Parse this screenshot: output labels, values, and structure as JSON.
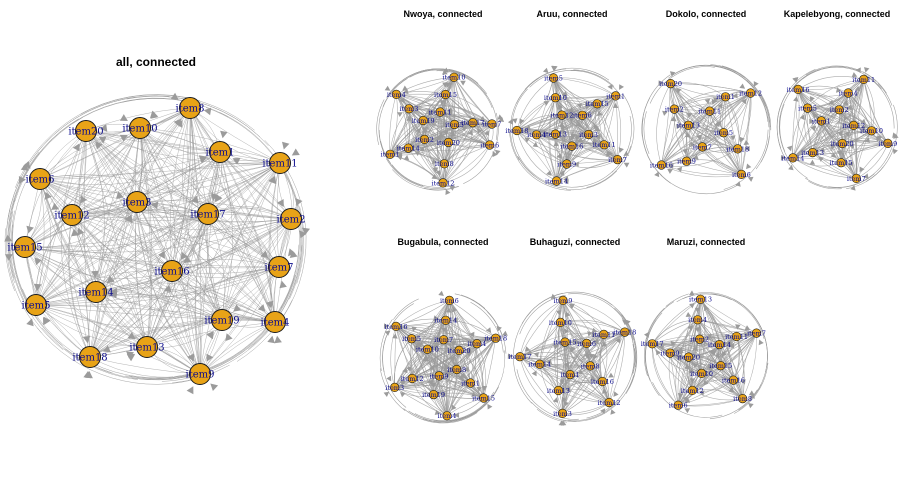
{
  "node_style": {
    "fill": "#E8A317",
    "stroke": "#1a1a1a",
    "edge": "#9b9b9b",
    "label": "#0a0a8c"
  },
  "panels": [
    {
      "id": "all",
      "title": "all, connected",
      "nodes": [
        "item8",
        "item20",
        "item10",
        "item1",
        "item11",
        "item6",
        "item3",
        "item12",
        "item17",
        "item2",
        "item15",
        "item7",
        "item16",
        "item14",
        "item5",
        "item19",
        "item4",
        "item13",
        "item18",
        "item9"
      ]
    },
    {
      "id": "nwoya",
      "title": "Nwoya, connected",
      "nodes": [
        "item6",
        "item8",
        "item2",
        "item12",
        "item14",
        "item19",
        "item1",
        "item3",
        "item11",
        "item4",
        "item15",
        "item5",
        "item10",
        "item17",
        "item20",
        "item7"
      ]
    },
    {
      "id": "aruu",
      "title": "Aruu, connected",
      "nodes": [
        "item7",
        "item9",
        "item13",
        "item14",
        "item4",
        "item12",
        "item18",
        "item10",
        "item6",
        "item5",
        "item15",
        "item3",
        "item1",
        "item11",
        "item16"
      ]
    },
    {
      "id": "dokolo",
      "title": "Dokolo, connected",
      "nodes": [
        "item6",
        "item9",
        "item13",
        "item16",
        "item2",
        "item11",
        "item20",
        "item1",
        "item5",
        "item12",
        "item18",
        "item7"
      ]
    },
    {
      "id": "kapelebyong",
      "title": "Kapelebyong, connected",
      "nodes": [
        "item7",
        "item13",
        "item1",
        "item14",
        "item5",
        "item2",
        "item16",
        "item4",
        "item12",
        "item11",
        "item10",
        "item20",
        "item9",
        "item15"
      ]
    },
    {
      "id": "bugabula",
      "title": "Bugabula, connected",
      "nodes": [
        "item4",
        "item12",
        "item10",
        "item3",
        "item5",
        "item7",
        "item16",
        "item14",
        "item20",
        "item6",
        "item4",
        "item8",
        "item18",
        "item1",
        "item9",
        "item15",
        "item19"
      ]
    },
    {
      "id": "buhaguzi",
      "title": "Buhaguzi, connected",
      "nodes": [
        "item3",
        "item14",
        "item15",
        "item17",
        "item10",
        "item6",
        "item9",
        "item11",
        "item8",
        "item18",
        "item16",
        "item1",
        "item12",
        "item13"
      ]
    },
    {
      "id": "maruzi",
      "title": "Maruzi, connected",
      "nodes": [
        "item6",
        "item9",
        "item2",
        "item17",
        "item4",
        "item14",
        "item13",
        "item11",
        "item15",
        "item7",
        "item16",
        "item10",
        "item8",
        "item12",
        "item20"
      ]
    }
  ]
}
